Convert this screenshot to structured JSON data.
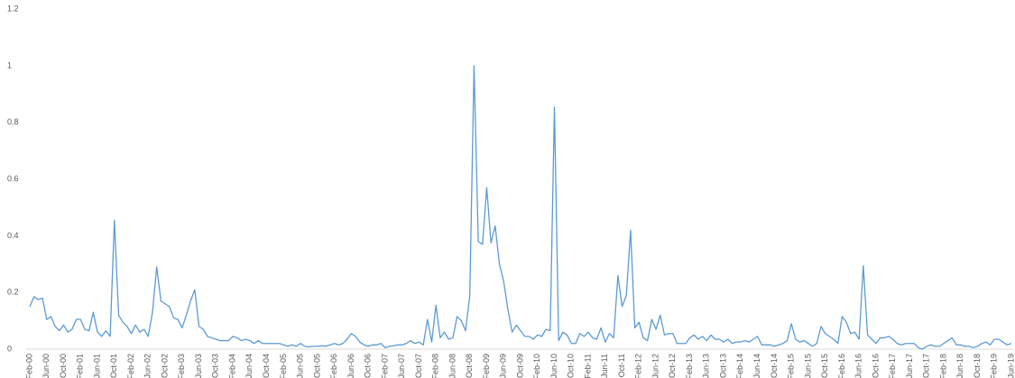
{
  "chart_data": {
    "type": "line",
    "categories": [
      "Feb-00",
      null,
      null,
      null,
      "Jun-00",
      null,
      null,
      null,
      "Oct-00",
      null,
      null,
      null,
      "Feb-01",
      null,
      null,
      null,
      "Jun-01",
      null,
      null,
      null,
      "Oct-01",
      null,
      null,
      null,
      "Feb-02",
      null,
      null,
      null,
      "Jun-02",
      null,
      null,
      null,
      "Oct-02",
      null,
      null,
      null,
      "Feb-03",
      null,
      null,
      null,
      "Jun-03",
      null,
      null,
      null,
      "Oct-03",
      null,
      null,
      null,
      "Feb-04",
      null,
      null,
      null,
      "Jun-04",
      null,
      null,
      null,
      "Oct-04",
      null,
      null,
      null,
      "Feb-05",
      null,
      null,
      null,
      "Jun-05",
      null,
      null,
      null,
      "Oct-05",
      null,
      null,
      null,
      "Feb-06",
      null,
      null,
      null,
      "Jun-06",
      null,
      null,
      null,
      "Oct-06",
      null,
      null,
      null,
      "Feb-07",
      null,
      null,
      null,
      "Jun-07",
      null,
      null,
      null,
      "Oct-07",
      null,
      null,
      null,
      "Feb-08",
      null,
      null,
      null,
      "Jun-08",
      null,
      null,
      null,
      "Oct-08",
      null,
      null,
      null,
      "Feb-09",
      null,
      null,
      null,
      "Jun-09",
      null,
      null,
      null,
      "Oct-09",
      null,
      null,
      null,
      "Feb-10",
      null,
      null,
      null,
      "Jun-10",
      null,
      null,
      null,
      "Oct-10",
      null,
      null,
      null,
      "Feb-11",
      null,
      null,
      null,
      "Jun-11",
      null,
      null,
      null,
      "Oct-11",
      null,
      null,
      null,
      "Feb-12",
      null,
      null,
      null,
      "Jun-12",
      null,
      null,
      null,
      "Oct-12",
      null,
      null,
      null,
      "Feb-13",
      null,
      null,
      null,
      "Jun-13",
      null,
      null,
      null,
      "Oct-13",
      null,
      null,
      null,
      "Feb-14",
      null,
      null,
      null,
      "Jun-14",
      null,
      null,
      null,
      "Oct-14",
      null,
      null,
      null,
      "Feb-15",
      null,
      null,
      null,
      "Jun-15",
      null,
      null,
      null,
      "Oct-15",
      null,
      null,
      null,
      "Feb-16",
      null,
      null,
      null,
      "Jun-16",
      null,
      null,
      null,
      "Oct-16",
      null,
      null,
      null,
      "Feb-17",
      null,
      null,
      null,
      "Jun-17",
      null,
      null,
      null,
      "Oct-17",
      null,
      null,
      null,
      "Feb-18",
      null,
      null,
      null,
      "Jun-18",
      null,
      null,
      null,
      "Oct-18",
      null,
      null,
      null,
      "Feb-19",
      null,
      null,
      null,
      "Jun-19"
    ],
    "values": [
      0.15,
      0.185,
      0.175,
      0.18,
      0.105,
      0.115,
      0.08,
      0.065,
      0.085,
      0.06,
      0.07,
      0.105,
      0.105,
      0.07,
      0.065,
      0.13,
      0.06,
      0.045,
      0.065,
      0.045,
      0.455,
      0.12,
      0.095,
      0.08,
      0.055,
      0.085,
      0.06,
      0.07,
      0.045,
      0.13,
      0.29,
      0.17,
      0.16,
      0.15,
      0.11,
      0.105,
      0.075,
      0.12,
      0.17,
      0.21,
      0.08,
      0.07,
      0.045,
      0.04,
      0.035,
      0.03,
      0.03,
      0.03,
      0.045,
      0.04,
      0.03,
      0.035,
      0.03,
      0.02,
      0.03,
      0.02,
      0.02,
      0.02,
      0.02,
      0.02,
      0.015,
      0.01,
      0.015,
      0.01,
      0.02,
      0.01,
      0.008,
      0.01,
      0.01,
      0.012,
      0.01,
      0.015,
      0.02,
      0.015,
      0.02,
      0.035,
      0.055,
      0.045,
      0.025,
      0.015,
      0.01,
      0.015,
      0.015,
      0.02,
      0.005,
      0.01,
      0.012,
      0.015,
      0.015,
      0.02,
      0.03,
      0.02,
      0.025,
      0.015,
      0.105,
      0.025,
      0.155,
      0.04,
      0.06,
      0.035,
      0.04,
      0.115,
      0.1,
      0.065,
      0.19,
      1,
      0.38,
      0.37,
      0.57,
      0.375,
      0.435,
      0.3,
      0.24,
      0.14,
      0.06,
      0.085,
      0.065,
      0.045,
      0.045,
      0.035,
      0.05,
      0.045,
      0.07,
      0.065,
      0.855,
      0.03,
      0.06,
      0.05,
      0.02,
      0.02,
      0.055,
      0.045,
      0.06,
      0.04,
      0.035,
      0.075,
      0.025,
      0.055,
      0.04,
      0.26,
      0.15,
      0.19,
      0.42,
      0.075,
      0.095,
      0.04,
      0.03,
      0.105,
      0.07,
      0.12,
      0.05,
      0.055,
      0.055,
      0.02,
      0.02,
      0.02,
      0.04,
      0.05,
      0.035,
      0.045,
      0.03,
      0.05,
      0.035,
      0.035,
      0.025,
      0.035,
      0.02,
      0.025,
      0.025,
      0.03,
      0.025,
      0.035,
      0.045,
      0.015,
      0.015,
      0.015,
      0.01,
      0.015,
      0.02,
      0.03,
      0.09,
      0.035,
      0.025,
      0.03,
      0.02,
      0.01,
      0.02,
      0.08,
      0.055,
      0.045,
      0.035,
      0.02,
      0.115,
      0.095,
      0.055,
      0.06,
      0.035,
      0.295,
      0.05,
      0.035,
      0.02,
      0.04,
      0.04,
      0.045,
      0.035,
      0.02,
      0.015,
      0.02,
      0.02,
      0.02,
      0.005,
      0,
      0.01,
      0.015,
      0.01,
      0.01,
      0.02,
      0.03,
      0.04,
      0.015,
      0.015,
      0.01,
      0.01,
      0.005,
      0.01,
      0.02,
      0.025,
      0.015,
      0.035,
      0.035,
      0.025,
      0.015,
      0.02
    ],
    "color": "#5b9bd5",
    "ylim": [
      0,
      1.2
    ],
    "yticks": [
      0,
      0.2,
      0.4,
      0.6,
      0.8,
      1,
      1.2
    ],
    "grid": false
  }
}
